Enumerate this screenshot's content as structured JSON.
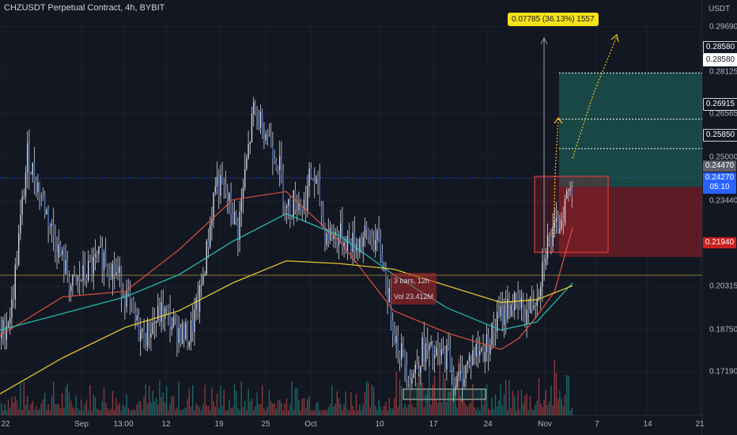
{
  "header": {
    "title": "CHZUSDT Perpetual Contract, 4h, BYBIT",
    "unit": "USDT"
  },
  "y_ticks": [
    "0.29690",
    "0.28125",
    "0.26565",
    "0.25000",
    "0.23440",
    "0.20315",
    "0.18750",
    "0.17190"
  ],
  "x_ticks": [
    "22",
    "Sep",
    "13:00",
    "12",
    "19",
    "25",
    "Oct",
    "10",
    "17",
    "24",
    "Nov",
    "7",
    "14",
    "21"
  ],
  "price_tags": {
    "tp_target": "0.28580",
    "tp_line_1": "0.28580",
    "tp_line_2": "0.26915",
    "tp_line_3": "0.25850",
    "position_entry": "0.24470",
    "last_price": "0.24270",
    "countdown": "05:10",
    "stop_loss": "0.21940"
  },
  "measure_label": "0.07785 (36.13%) 1557",
  "overlay": {
    "bars_label": "3 bars, 12h",
    "vol_label": "Vol 23.412M"
  },
  "colors": {
    "background": "#131722",
    "candle": "#d1d4dc",
    "bull_volume": "#26a69a",
    "bear_volume": "#ef5350",
    "ma_red": "#e0503d",
    "ma_teal": "#26c6b4",
    "ma_yellow": "#f0d232",
    "profit_zone": "#1f6f64",
    "loss_zone": "#8c1f2a",
    "measure": "#f5e21b"
  },
  "chart_data": {
    "type": "candlestick",
    "symbol": "CHZUSDT",
    "interval": "4h",
    "ylim": [
      0.164,
      0.303
    ],
    "x_range": [
      "2023-08-22",
      "2023-11-21"
    ],
    "ma_series": [
      {
        "color": "red",
        "keypoints": [
          [
            0,
            0.191
          ],
          [
            70,
            0.205
          ],
          [
            140,
            0.207
          ],
          [
            200,
            0.222
          ],
          [
            260,
            0.24
          ],
          [
            320,
            0.243
          ],
          [
            380,
            0.225
          ],
          [
            440,
            0.2
          ],
          [
            500,
            0.192
          ],
          [
            560,
            0.186
          ],
          [
            580,
            0.19
          ],
          [
            600,
            0.198
          ],
          [
            620,
            0.207
          ],
          [
            640,
            0.23
          ]
        ]
      },
      {
        "color": "teal",
        "keypoints": [
          [
            0,
            0.193
          ],
          [
            70,
            0.199
          ],
          [
            140,
            0.205
          ],
          [
            200,
            0.213
          ],
          [
            260,
            0.225
          ],
          [
            320,
            0.235
          ],
          [
            380,
            0.227
          ],
          [
            440,
            0.213
          ],
          [
            500,
            0.201
          ],
          [
            560,
            0.193
          ],
          [
            600,
            0.196
          ],
          [
            640,
            0.21
          ]
        ]
      },
      {
        "color": "yellow",
        "keypoints": [
          [
            0,
            0.17
          ],
          [
            70,
            0.183
          ],
          [
            140,
            0.194
          ],
          [
            200,
            0.2
          ],
          [
            260,
            0.21
          ],
          [
            320,
            0.218
          ],
          [
            380,
            0.217
          ],
          [
            440,
            0.215
          ],
          [
            500,
            0.209
          ],
          [
            560,
            0.203
          ],
          [
            600,
            0.204
          ],
          [
            640,
            0.209
          ]
        ]
      }
    ],
    "price_path": [
      [
        0,
        0.19
      ],
      [
        14,
        0.201
      ],
      [
        34,
        0.256
      ],
      [
        52,
        0.241
      ],
      [
        66,
        0.228
      ],
      [
        90,
        0.208
      ],
      [
        110,
        0.214
      ],
      [
        130,
        0.22
      ],
      [
        150,
        0.212
      ],
      [
        170,
        0.196
      ],
      [
        180,
        0.19
      ],
      [
        205,
        0.2
      ],
      [
        220,
        0.194
      ],
      [
        238,
        0.19
      ],
      [
        252,
        0.205
      ],
      [
        262,
        0.224
      ],
      [
        272,
        0.247
      ],
      [
        286,
        0.241
      ],
      [
        300,
        0.229
      ],
      [
        310,
        0.251
      ],
      [
        320,
        0.272
      ],
      [
        338,
        0.264
      ],
      [
        352,
        0.253
      ],
      [
        362,
        0.236
      ],
      [
        372,
        0.24
      ],
      [
        384,
        0.238
      ],
      [
        392,
        0.249
      ],
      [
        400,
        0.245
      ],
      [
        410,
        0.228
      ],
      [
        428,
        0.227
      ],
      [
        446,
        0.224
      ],
      [
        466,
        0.227
      ],
      [
        480,
        0.223
      ],
      [
        488,
        0.209
      ],
      [
        500,
        0.19
      ],
      [
        512,
        0.181
      ],
      [
        520,
        0.176
      ],
      [
        534,
        0.186
      ],
      [
        550,
        0.183
      ],
      [
        566,
        0.184
      ],
      [
        576,
        0.173
      ],
      [
        586,
        0.178
      ],
      [
        598,
        0.185
      ],
      [
        612,
        0.186
      ],
      [
        630,
        0.197
      ],
      [
        646,
        0.203
      ],
      [
        666,
        0.199
      ],
      [
        680,
        0.208
      ],
      [
        690,
        0.224
      ],
      [
        700,
        0.227
      ],
      [
        710,
        0.235
      ],
      [
        718,
        0.243
      ]
    ],
    "position_tool": {
      "entry": 0.2447,
      "take_profit": 0.2858,
      "stop_loss": 0.2194,
      "targets": [
        0.26915,
        0.2585
      ]
    },
    "measure": {
      "change": 0.07785,
      "percent": 36.13,
      "bars": 1557
    }
  }
}
